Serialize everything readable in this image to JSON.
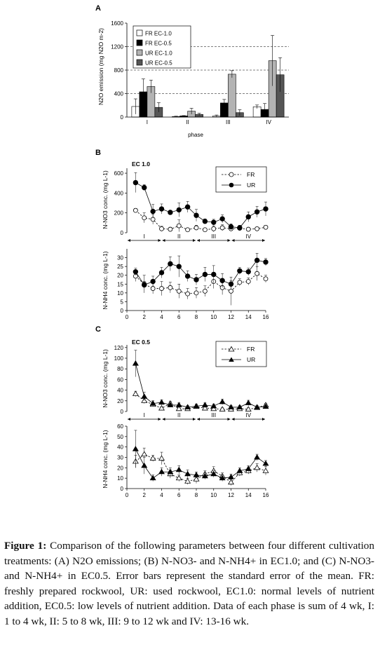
{
  "panels": {
    "A": {
      "letter": "A",
      "ylabel": "N2O emission (mg N2O m-2)",
      "xlabel": "phase",
      "legend": [
        "FR EC-1.0",
        "FR EC-0.5",
        "UR EC-1.0",
        "UR EC-0.5"
      ],
      "colors": [
        "#ffffff",
        "#000000",
        "#b3b3b3",
        "#555555"
      ]
    },
    "B": {
      "letter": "B",
      "title": "EC 1.0",
      "legend_fr": "FR",
      "legend_ur": "UR",
      "ylabel_top": "N-NO3 conc. (mg L-1)",
      "ylabel_bottom": "N-NH4 conc. (mg L-1)"
    },
    "C": {
      "letter": "C",
      "title": "EC 0.5",
      "legend_fr": "FR",
      "legend_ur": "UR",
      "ylabel_top": "N-NO3 conc. (mg L-1)",
      "ylabel_bottom": "N-NH4 conc. (mg L-1)"
    },
    "phase_labels": [
      "I",
      "II",
      "III",
      "IV"
    ]
  },
  "chart_data": [
    {
      "id": "A",
      "type": "bar",
      "categories": [
        "I",
        "II",
        "III",
        "IV"
      ],
      "xlabel": "phase",
      "ylabel": "N2O emission (mg N2O m-2)",
      "ylim": [
        0,
        1600
      ],
      "yticks": [
        0,
        400,
        800,
        1200,
        1600
      ],
      "grid": "dashed at 400, 800, 1200",
      "legend_position": "top-left",
      "series": [
        {
          "name": "FR EC-1.0",
          "values": [
            180,
            10,
            20,
            175
          ],
          "errors": [
            130,
            5,
            15,
            30
          ]
        },
        {
          "name": "FR EC-0.5",
          "values": [
            430,
            20,
            240,
            130
          ],
          "errors": [
            220,
            5,
            60,
            100
          ]
        },
        {
          "name": "UR EC-1.0",
          "values": [
            520,
            100,
            730,
            960
          ],
          "errors": [
            110,
            50,
            60,
            430
          ]
        },
        {
          "name": "UR EC-0.5",
          "values": [
            165,
            45,
            75,
            720
          ],
          "errors": [
            80,
            20,
            50,
            290
          ]
        }
      ]
    },
    {
      "id": "B-NO3",
      "type": "line",
      "x": [
        1,
        2,
        3,
        4,
        5,
        6,
        7,
        8,
        9,
        10,
        11,
        12,
        13,
        14,
        15,
        16
      ],
      "ylabel": "N-NO3 conc. (mg L-1)",
      "xlim": [
        0,
        16
      ],
      "ylim": [
        0,
        650
      ],
      "yticks": [
        0,
        200,
        400,
        600
      ],
      "series": [
        {
          "name": "FR",
          "values": [
            225,
            150,
            135,
            40,
            35,
            70,
            30,
            50,
            30,
            40,
            50,
            40,
            45,
            35,
            40,
            55
          ],
          "errors": [
            20,
            50,
            50,
            25,
            20,
            60,
            15,
            25,
            15,
            30,
            30,
            15,
            15,
            10,
            15,
            15
          ]
        },
        {
          "name": "UR",
          "values": [
            505,
            455,
            215,
            240,
            205,
            230,
            260,
            175,
            115,
            105,
            140,
            60,
            50,
            160,
            210,
            240
          ],
          "errors": [
            100,
            30,
            70,
            50,
            20,
            70,
            55,
            60,
            25,
            30,
            40,
            30,
            25,
            50,
            55,
            70
          ]
        }
      ]
    },
    {
      "id": "B-NH4",
      "type": "line",
      "x": [
        1,
        2,
        3,
        4,
        5,
        6,
        7,
        8,
        9,
        10,
        11,
        12,
        13,
        14,
        15,
        16
      ],
      "ylabel": "N-NH4 conc. (mg L-1)",
      "xlim": [
        0,
        16
      ],
      "ylim": [
        0,
        35
      ],
      "yticks": [
        0,
        5,
        10,
        15,
        20,
        25,
        30
      ],
      "xticks": [
        0,
        2,
        4,
        6,
        8,
        10,
        12,
        14,
        16
      ],
      "series": [
        {
          "name": "FR",
          "values": [
            19.5,
            15,
            12.5,
            12.5,
            13,
            11,
            9.5,
            10,
            11,
            16.5,
            13,
            11,
            16,
            16.5,
            21,
            18
          ],
          "errors": [
            3,
            5,
            3,
            4,
            3,
            4,
            3,
            3,
            3,
            4,
            4,
            8,
            2,
            2,
            4,
            2
          ]
        },
        {
          "name": "UR",
          "values": [
            22,
            14.5,
            16.5,
            21.5,
            26.5,
            25,
            19.5,
            17.5,
            20.5,
            20.5,
            17,
            15,
            22.5,
            22,
            28.5,
            27.5
          ],
          "errors": [
            2,
            2,
            3,
            3,
            4,
            6,
            3,
            3,
            4,
            5,
            4,
            2,
            2,
            2,
            4,
            2
          ]
        }
      ]
    },
    {
      "id": "C-NO3",
      "type": "line",
      "x": [
        1,
        2,
        3,
        4,
        5,
        6,
        7,
        8,
        9,
        10,
        11,
        12,
        13,
        14,
        15,
        16
      ],
      "ylabel": "N-NO3 conc. (mg L-1)",
      "xlim": [
        0,
        16
      ],
      "ylim": [
        0,
        125
      ],
      "yticks": [
        0,
        20,
        40,
        60,
        80,
        100,
        120
      ],
      "series": [
        {
          "name": "FR",
          "values": [
            33,
            20,
            13,
            6,
            15,
            5,
            5,
            9,
            6,
            5,
            4,
            4,
            5,
            4,
            7,
            12
          ],
          "errors": [
            5,
            5,
            3,
            3,
            4,
            3,
            3,
            3,
            3,
            3,
            3,
            3,
            3,
            3,
            3,
            3
          ]
        },
        {
          "name": "UR",
          "values": [
            90,
            28,
            15,
            17,
            12,
            12,
            8,
            10,
            12,
            10,
            18,
            8,
            8,
            16,
            8,
            9
          ],
          "errors": [
            25,
            8,
            5,
            5,
            4,
            4,
            3,
            4,
            4,
            4,
            5,
            3,
            3,
            5,
            3,
            3
          ]
        }
      ]
    },
    {
      "id": "C-NH4",
      "type": "line",
      "x": [
        1,
        2,
        3,
        4,
        5,
        6,
        7,
        8,
        9,
        10,
        11,
        12,
        13,
        14,
        15,
        16
      ],
      "ylabel": "N-NH4 conc. (mg L-1)",
      "xlim": [
        0,
        16
      ],
      "ylim": [
        0,
        60
      ],
      "yticks": [
        0,
        10,
        20,
        30,
        40,
        50,
        60
      ],
      "xticks": [
        0,
        2,
        4,
        6,
        8,
        10,
        12,
        14,
        16
      ],
      "series": [
        {
          "name": "FR",
          "values": [
            26,
            33,
            29,
            29,
            14,
            10,
            7,
            9,
            14,
            17,
            12,
            6,
            15,
            17,
            20,
            17
          ],
          "errors": [
            6,
            6,
            3,
            6,
            4,
            3,
            3,
            4,
            3,
            4,
            3,
            3,
            3,
            3,
            4,
            4
          ]
        },
        {
          "name": "UR",
          "values": [
            38,
            22,
            10,
            16,
            16,
            18,
            14,
            13,
            12,
            14,
            10,
            11,
            17,
            19,
            30,
            24
          ],
          "errors": [
            18,
            8,
            3,
            4,
            4,
            4,
            4,
            3,
            3,
            3,
            3,
            3,
            3,
            3,
            3,
            3
          ]
        }
      ]
    }
  ],
  "caption": {
    "label": "Figure 1:",
    "text": "Comparison of the following parameters between four different cultivation treatments: (A) N2O emissions; (B) N-NO3- and N-NH4+ in EC1.0; and (C) N-NO3- and N-NH4+ in EC0.5. Error bars represent the standard error of the mean. FR: freshly prepared rockwool, UR: used rockwool, EC1.0: normal levels of nutrient addition, EC0.5: low levels of nutrient addition. Data of each phase is sum of 4 wk, I: 1 to 4 wk, II: 5 to 8 wk, III: 9 to 12 wk and IV: 13-16 wk."
  }
}
